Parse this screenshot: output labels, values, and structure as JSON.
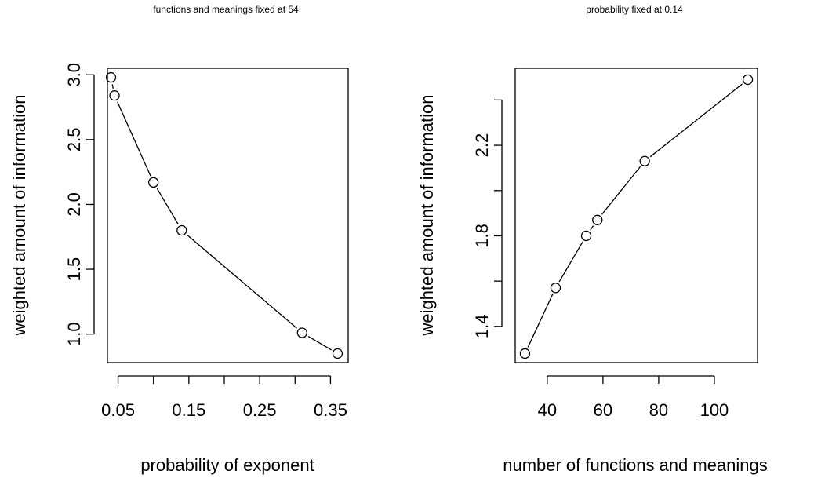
{
  "chart_data": [
    {
      "type": "line",
      "markers": "open-circle",
      "title": "functions and meanings fixed at 54",
      "xlabel": "probability of exponent",
      "ylabel": "weighted amount of information",
      "x": [
        0.04,
        0.045,
        0.1,
        0.14,
        0.31,
        0.36
      ],
      "y": [
        2.98,
        2.84,
        2.17,
        1.8,
        1.01,
        0.85
      ],
      "xlim": [
        0.035,
        0.375
      ],
      "ylim": [
        0.78,
        3.05
      ],
      "xticks": [
        0.05,
        0.1,
        0.15,
        0.2,
        0.25,
        0.3,
        0.35
      ],
      "xticklabels": [
        "0.05",
        "",
        "0.15",
        "",
        "0.25",
        "",
        "0.35"
      ],
      "yticks": [
        1.0,
        1.5,
        2.0,
        2.5,
        3.0
      ],
      "yticklabels": [
        "1.0",
        "1.5",
        "2.0",
        "2.5",
        "3.0"
      ],
      "grid": false,
      "legend": "none"
    },
    {
      "type": "line",
      "markers": "open-circle",
      "title": "probability fixed at 0.14",
      "xlabel": "number of functions and meanings",
      "ylabel": "weighted amount of information",
      "x": [
        32,
        43,
        54,
        58,
        75,
        112
      ],
      "y": [
        1.28,
        1.57,
        1.8,
        1.87,
        2.13,
        2.49
      ],
      "xlim": [
        28.5,
        115.5
      ],
      "ylim": [
        1.24,
        2.54
      ],
      "xticks": [
        40,
        60,
        80,
        100
      ],
      "xticklabels": [
        "40",
        "60",
        "80",
        "100"
      ],
      "yticks": [
        1.4,
        1.6,
        1.8,
        2.0,
        2.2,
        2.4
      ],
      "yticklabels": [
        "1.4",
        "",
        "1.8",
        "",
        "2.2",
        ""
      ],
      "grid": false,
      "legend": "none"
    }
  ]
}
